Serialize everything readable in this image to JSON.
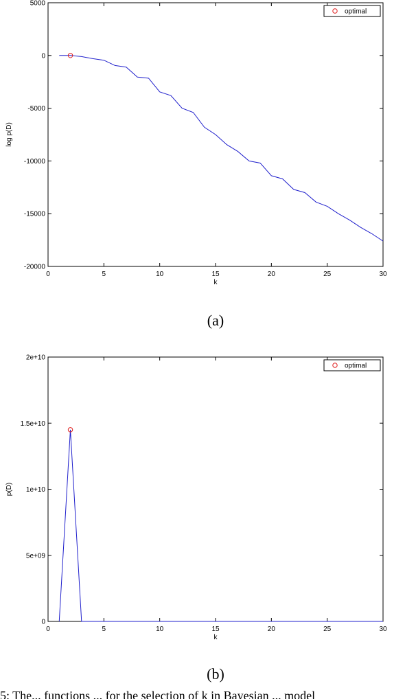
{
  "chart_data": [
    {
      "type": "line",
      "xlabel": "k",
      "ylabel": "log p(D)",
      "xlim": [
        0,
        30
      ],
      "ylim": [
        -20000,
        5000
      ],
      "xticks": [
        "0",
        "5",
        "10",
        "15",
        "20",
        "25",
        "30"
      ],
      "yticks": [
        "-20000",
        "-15000",
        "-10000",
        "-5000",
        "0",
        "5000"
      ],
      "x": [
        1,
        2,
        3,
        4,
        5,
        6,
        7,
        8,
        9,
        10,
        11,
        12,
        13,
        14,
        15,
        16,
        17,
        18,
        19,
        20,
        21,
        22,
        23,
        24,
        25,
        26,
        27,
        28,
        29,
        30
      ],
      "series": [
        {
          "values": [
            0,
            0,
            -100,
            -300,
            -450,
            -950,
            -1100,
            -2050,
            -2150,
            -3450,
            -3800,
            -5000,
            -5400,
            -6800,
            -7500,
            -8450,
            -9100,
            -10000,
            -10200,
            -11400,
            -11700,
            -12700,
            -13000,
            -13900,
            -14300,
            -15000,
            -15600,
            -16300,
            -16900,
            -17600
          ]
        }
      ],
      "markers": [
        {
          "name": "optimal",
          "x": 2,
          "y": 0
        }
      ],
      "legend": [
        "optimal"
      ],
      "legend_position": "top-right",
      "grid": false,
      "caption": "(a)"
    },
    {
      "type": "line",
      "xlabel": "k",
      "ylabel": "p(D)",
      "xlim": [
        0,
        30
      ],
      "ylim": [
        0,
        20000000000
      ],
      "xticks": [
        "0",
        "5",
        "10",
        "15",
        "20",
        "25",
        "30"
      ],
      "yticks": [
        "0",
        "5e+09",
        "1e+10",
        "1.5e+10",
        "2e+10"
      ],
      "x": [
        1,
        2,
        3,
        4,
        5,
        6,
        7,
        8,
        9,
        10,
        11,
        12,
        13,
        14,
        15,
        16,
        17,
        18,
        19,
        20,
        21,
        22,
        23,
        24,
        25,
        26,
        27,
        28,
        29,
        30
      ],
      "series": [
        {
          "values": [
            0,
            14500000000,
            0,
            0,
            0,
            0,
            0,
            0,
            0,
            0,
            0,
            0,
            0,
            0,
            0,
            0,
            0,
            0,
            0,
            0,
            0,
            0,
            0,
            0,
            0,
            0,
            0,
            0,
            0,
            0
          ]
        }
      ],
      "markers": [
        {
          "name": "optimal",
          "x": 2,
          "y": 14500000000
        }
      ],
      "legend": [
        "optimal"
      ],
      "legend_position": "top-right",
      "grid": false,
      "caption": "(b)"
    }
  ],
  "colors": {
    "line": "#1f1fcc",
    "marker": "#e02020",
    "axis": "#000000"
  },
  "footer_text": "5: The... functions ... for the selection of k in Bayesian ... model"
}
